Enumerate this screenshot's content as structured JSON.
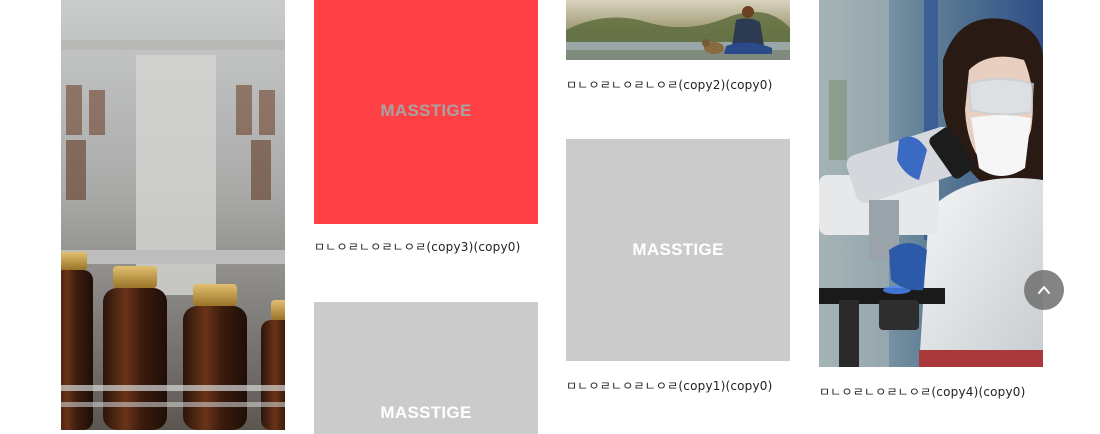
{
  "gallery": {
    "items": [
      {
        "caption": "ㅁㄴㅇㄹㄴㅇㄹㄴㅇㄹ(copy3)(copy0)",
        "brand": "MASSTIGE"
      },
      {
        "brand": "MASSTIGE"
      },
      {
        "caption": "ㅁㄴㅇㄹㄴㅇㄹㄴㅇㄹ(copy2)(copy0)"
      },
      {
        "caption": "ㅁㄴㅇㄹㄴㅇㄹㄴㅇㄹ(copy1)(copy0)",
        "brand": "MASSTIGE"
      },
      {
        "caption": "ㅁㄴㅇㄹㄴㅇㄹㄴㅇㄹ(copy4)(copy0)"
      }
    ]
  },
  "colors": {
    "red_tile": "#ff4044",
    "grey_tile": "#cbcbcb"
  },
  "icons": {
    "scroll_top": "chevron-up-icon"
  }
}
